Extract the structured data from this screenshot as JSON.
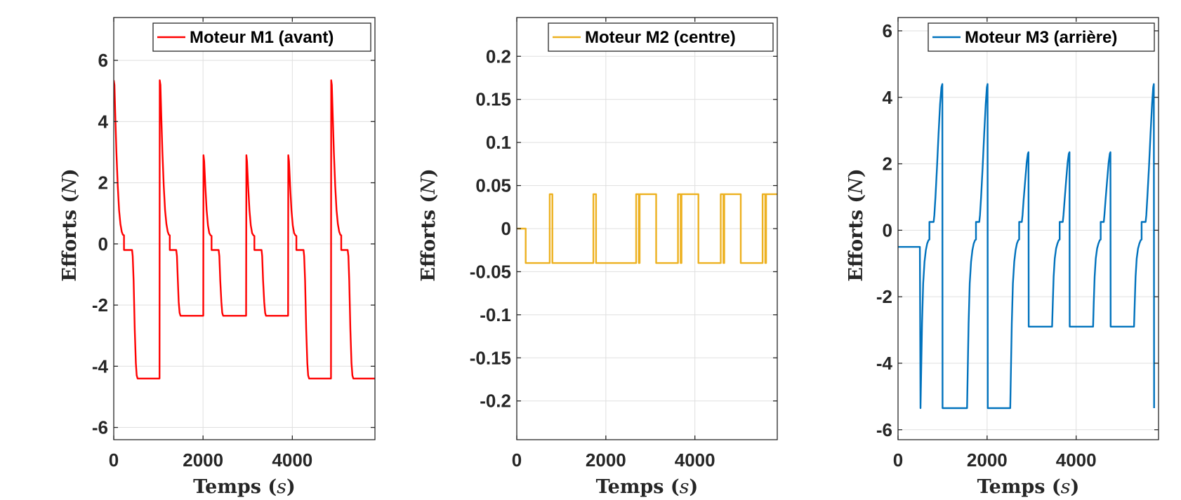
{
  "chart_data": [
    {
      "type": "line",
      "xlabel": "Temps",
      "xlabel_var": "s",
      "ylabel": "Efforts",
      "ylabel_var": "N",
      "xlim": [
        0,
        5850
      ],
      "ylim": [
        -6.4,
        7.4
      ],
      "xticks": [
        0,
        2000,
        4000
      ],
      "xtick_labels": [
        "0",
        "2000",
        "4000"
      ],
      "yticks": [
        -6,
        -4,
        -2,
        0,
        2,
        4,
        6
      ],
      "ytick_labels": [
        "-6",
        "-4",
        "-2",
        "0",
        "2",
        "4",
        "6"
      ],
      "grid": true,
      "legend_position": "top-right",
      "series": [
        {
          "name": "Moteur M1 (avant)",
          "color": "#ff0000",
          "points": [
            [
              0,
              5.35
            ],
            [
              15,
              5.2
            ],
            [
              35,
              4.2
            ],
            [
              60,
              3.0
            ],
            [
              90,
              1.9
            ],
            [
              120,
              1.1
            ],
            [
              150,
              0.65
            ],
            [
              180,
              0.4
            ],
            [
              205,
              0.3
            ],
            [
              230,
              0.28
            ],
            [
              230,
              -0.2
            ],
            [
              410,
              -0.2
            ],
            [
              425,
              -0.4
            ],
            [
              445,
              -1.2
            ],
            [
              470,
              -2.8
            ],
            [
              495,
              -3.9
            ],
            [
              515,
              -4.3
            ],
            [
              535,
              -4.4
            ],
            [
              1025,
              -4.4
            ],
            [
              1030,
              5.35
            ],
            [
              1045,
              5.2
            ],
            [
              1065,
              4.2
            ],
            [
              1090,
              3.0
            ],
            [
              1120,
              1.9
            ],
            [
              1150,
              1.1
            ],
            [
              1180,
              0.65
            ],
            [
              1210,
              0.4
            ],
            [
              1235,
              0.3
            ],
            [
              1255,
              0.28
            ],
            [
              1255,
              -0.2
            ],
            [
              1400,
              -0.2
            ],
            [
              1415,
              -0.4
            ],
            [
              1435,
              -1.2
            ],
            [
              1455,
              -1.9
            ],
            [
              1475,
              -2.25
            ],
            [
              1495,
              -2.35
            ],
            [
              2005,
              -2.35
            ],
            [
              2010,
              2.9
            ],
            [
              2025,
              2.7
            ],
            [
              2050,
              1.9
            ],
            [
              2080,
              1.1
            ],
            [
              2110,
              0.6
            ],
            [
              2140,
              0.35
            ],
            [
              2170,
              0.28
            ],
            [
              2190,
              0.26
            ],
            [
              2190,
              -0.2
            ],
            [
              2350,
              -0.2
            ],
            [
              2365,
              -0.4
            ],
            [
              2385,
              -1.2
            ],
            [
              2410,
              -1.9
            ],
            [
              2430,
              -2.25
            ],
            [
              2450,
              -2.35
            ],
            [
              2965,
              -2.35
            ],
            [
              2970,
              2.9
            ],
            [
              2985,
              2.7
            ],
            [
              3010,
              1.9
            ],
            [
              3040,
              1.1
            ],
            [
              3070,
              0.6
            ],
            [
              3100,
              0.35
            ],
            [
              3130,
              0.28
            ],
            [
              3150,
              0.26
            ],
            [
              3150,
              -0.2
            ],
            [
              3310,
              -0.2
            ],
            [
              3325,
              -0.4
            ],
            [
              3345,
              -1.2
            ],
            [
              3370,
              -1.9
            ],
            [
              3390,
              -2.25
            ],
            [
              3410,
              -2.35
            ],
            [
              3905,
              -2.35
            ],
            [
              3910,
              2.9
            ],
            [
              3925,
              2.7
            ],
            [
              3950,
              1.9
            ],
            [
              3980,
              1.1
            ],
            [
              4010,
              0.6
            ],
            [
              4040,
              0.35
            ],
            [
              4070,
              0.28
            ],
            [
              4090,
              0.26
            ],
            [
              4090,
              -0.2
            ],
            [
              4250,
              -0.2
            ],
            [
              4265,
              -0.4
            ],
            [
              4285,
              -1.2
            ],
            [
              4310,
              -2.8
            ],
            [
              4335,
              -3.9
            ],
            [
              4355,
              -4.3
            ],
            [
              4375,
              -4.4
            ],
            [
              4865,
              -4.4
            ],
            [
              4870,
              5.35
            ],
            [
              4885,
              5.2
            ],
            [
              4905,
              4.2
            ],
            [
              4930,
              3.0
            ],
            [
              4960,
              1.9
            ],
            [
              4990,
              1.1
            ],
            [
              5020,
              0.65
            ],
            [
              5050,
              0.4
            ],
            [
              5075,
              0.3
            ],
            [
              5095,
              0.28
            ],
            [
              5095,
              -0.2
            ],
            [
              5240,
              -0.2
            ],
            [
              5255,
              -0.4
            ],
            [
              5275,
              -1.2
            ],
            [
              5300,
              -2.8
            ],
            [
              5325,
              -3.9
            ],
            [
              5345,
              -4.3
            ],
            [
              5365,
              -4.4
            ],
            [
              5850,
              -4.4
            ]
          ]
        }
      ]
    },
    {
      "type": "line",
      "xlabel": "Temps",
      "xlabel_var": "s",
      "ylabel": "Efforts",
      "ylabel_var": "N",
      "xlim": [
        0,
        5850
      ],
      "ylim": [
        -0.245,
        0.245
      ],
      "xticks": [
        0,
        2000,
        4000
      ],
      "xtick_labels": [
        "0",
        "2000",
        "4000"
      ],
      "yticks": [
        -0.2,
        -0.15,
        -0.1,
        -0.05,
        0,
        0.05,
        0.1,
        0.15,
        0.2
      ],
      "ytick_labels": [
        "-0.2",
        "-0.15",
        "-0.1",
        "-0.05",
        "0",
        "0.05",
        "0.1",
        "0.15",
        "0.2"
      ],
      "grid": true,
      "legend_position": "top-right",
      "series": [
        {
          "name": "Moteur M2 (centre)",
          "color": "#edb120",
          "points": [
            [
              0,
              0
            ],
            [
              200,
              0
            ],
            [
              200,
              -0.04
            ],
            [
              740,
              -0.04
            ],
            [
              740,
              0.04
            ],
            [
              800,
              0.04
            ],
            [
              800,
              -0.04
            ],
            [
              1720,
              -0.04
            ],
            [
              1720,
              0.04
            ],
            [
              1780,
              0.04
            ],
            [
              1780,
              -0.04
            ],
            [
              2680,
              -0.04
            ],
            [
              2680,
              0.04
            ],
            [
              2740,
              0.04
            ],
            [
              2740,
              -0.04
            ],
            [
              2760,
              -0.04
            ],
            [
              2760,
              0.04
            ],
            [
              3130,
              0.04
            ],
            [
              3130,
              -0.04
            ],
            [
              3620,
              -0.04
            ],
            [
              3620,
              0.04
            ],
            [
              3680,
              0.04
            ],
            [
              3680,
              -0.04
            ],
            [
              3700,
              -0.04
            ],
            [
              3700,
              0.04
            ],
            [
              4080,
              0.04
            ],
            [
              4080,
              -0.04
            ],
            [
              4580,
              -0.04
            ],
            [
              4580,
              0.04
            ],
            [
              4640,
              0.04
            ],
            [
              4640,
              -0.04
            ],
            [
              4660,
              -0.04
            ],
            [
              4660,
              0.04
            ],
            [
              5030,
              0.04
            ],
            [
              5030,
              -0.04
            ],
            [
              5520,
              -0.04
            ],
            [
              5520,
              0.04
            ],
            [
              5580,
              0.04
            ],
            [
              5580,
              -0.04
            ],
            [
              5600,
              -0.04
            ],
            [
              5600,
              0.04
            ],
            [
              5850,
              0.04
            ]
          ]
        }
      ]
    },
    {
      "type": "line",
      "xlabel": "Temps",
      "xlabel_var": "s",
      "ylabel": "Efforts",
      "ylabel_var": "N",
      "xlim": [
        0,
        5850
      ],
      "ylim": [
        -6.3,
        6.4
      ],
      "xticks": [
        0,
        2000,
        4000
      ],
      "xtick_labels": [
        "0",
        "2000",
        "4000"
      ],
      "yticks": [
        -6,
        -4,
        -2,
        0,
        2,
        4,
        6
      ],
      "ytick_labels": [
        "-6",
        "-4",
        "-2",
        "0",
        "2",
        "4",
        "6"
      ],
      "grid": true,
      "legend_position": "top-right",
      "series": [
        {
          "name": "Moteur M3 (arrière)",
          "color": "#0072bd",
          "points": [
            [
              0,
              -0.5
            ],
            [
              490,
              -0.5
            ],
            [
              505,
              -5.35
            ],
            [
              520,
              -4.2
            ],
            [
              540,
              -2.8
            ],
            [
              565,
              -1.6
            ],
            [
              595,
              -0.95
            ],
            [
              625,
              -0.6
            ],
            [
              655,
              -0.4
            ],
            [
              685,
              -0.3
            ],
            [
              705,
              -0.28
            ],
            [
              705,
              0.25
            ],
            [
              800,
              0.25
            ],
            [
              815,
              0.45
            ],
            [
              840,
              1.0
            ],
            [
              875,
              1.9
            ],
            [
              910,
              2.9
            ],
            [
              945,
              3.8
            ],
            [
              975,
              4.3
            ],
            [
              995,
              4.4
            ],
            [
              1000,
              -5.35
            ],
            [
              1550,
              -5.35
            ],
            [
              1565,
              -4.2
            ],
            [
              1585,
              -2.8
            ],
            [
              1610,
              -1.6
            ],
            [
              1640,
              -0.95
            ],
            [
              1670,
              -0.6
            ],
            [
              1700,
              -0.4
            ],
            [
              1730,
              -0.3
            ],
            [
              1750,
              -0.28
            ],
            [
              1750,
              0.25
            ],
            [
              1825,
              0.25
            ],
            [
              1840,
              0.45
            ],
            [
              1865,
              1.0
            ],
            [
              1900,
              1.9
            ],
            [
              1935,
              2.9
            ],
            [
              1970,
              3.8
            ],
            [
              1995,
              4.3
            ],
            [
              2010,
              4.4
            ],
            [
              2015,
              -5.35
            ],
            [
              2520,
              -5.35
            ],
            [
              2535,
              -4.2
            ],
            [
              2555,
              -2.8
            ],
            [
              2580,
              -1.6
            ],
            [
              2610,
              -0.95
            ],
            [
              2640,
              -0.6
            ],
            [
              2670,
              -0.4
            ],
            [
              2700,
              -0.3
            ],
            [
              2720,
              -0.28
            ],
            [
              2720,
              0.25
            ],
            [
              2780,
              0.25
            ],
            [
              2795,
              0.45
            ],
            [
              2820,
              0.9
            ],
            [
              2855,
              1.5
            ],
            [
              2890,
              2.05
            ],
            [
              2915,
              2.3
            ],
            [
              2930,
              2.35
            ],
            [
              2935,
              -2.9
            ],
            [
              3460,
              -2.9
            ],
            [
              3475,
              -2.2
            ],
            [
              3495,
              -1.4
            ],
            [
              3520,
              -0.85
            ],
            [
              3550,
              -0.55
            ],
            [
              3580,
              -0.4
            ],
            [
              3610,
              -0.3
            ],
            [
              3630,
              -0.28
            ],
            [
              3630,
              0.25
            ],
            [
              3700,
              0.25
            ],
            [
              3715,
              0.45
            ],
            [
              3740,
              0.9
            ],
            [
              3775,
              1.5
            ],
            [
              3810,
              2.05
            ],
            [
              3835,
              2.3
            ],
            [
              3850,
              2.35
            ],
            [
              3855,
              -2.9
            ],
            [
              4380,
              -2.9
            ],
            [
              4395,
              -2.2
            ],
            [
              4415,
              -1.4
            ],
            [
              4440,
              -0.85
            ],
            [
              4470,
              -0.55
            ],
            [
              4500,
              -0.4
            ],
            [
              4530,
              -0.3
            ],
            [
              4550,
              -0.28
            ],
            [
              4550,
              0.25
            ],
            [
              4620,
              0.25
            ],
            [
              4635,
              0.45
            ],
            [
              4660,
              0.9
            ],
            [
              4695,
              1.5
            ],
            [
              4730,
              2.05
            ],
            [
              4755,
              2.3
            ],
            [
              4770,
              2.35
            ],
            [
              4775,
              -2.9
            ],
            [
              5300,
              -2.9
            ],
            [
              5315,
              -2.2
            ],
            [
              5335,
              -1.4
            ],
            [
              5360,
              -0.85
            ],
            [
              5390,
              -0.55
            ],
            [
              5420,
              -0.4
            ],
            [
              5450,
              -0.3
            ],
            [
              5470,
              -0.28
            ],
            [
              5470,
              0.25
            ],
            [
              5560,
              0.25
            ],
            [
              5575,
              0.45
            ],
            [
              5600,
              1.0
            ],
            [
              5635,
              1.9
            ],
            [
              5670,
              2.9
            ],
            [
              5705,
              3.8
            ],
            [
              5730,
              4.3
            ],
            [
              5745,
              4.4
            ],
            [
              5750,
              -5.35
            ]
          ]
        }
      ]
    }
  ]
}
